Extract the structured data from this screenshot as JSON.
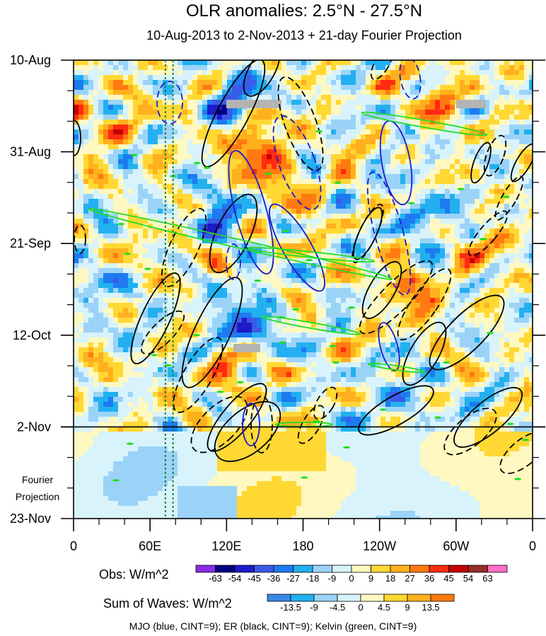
{
  "chart_data": {
    "type": "heatmap",
    "title": "OLR anomalies: 2.5°N - 27.5°N",
    "subtitle": "10-Aug-2013 to 2-Nov-2013 + 21-day Fourier Projection",
    "x_ticks": [
      "0",
      "60E",
      "120E",
      "180",
      "120W",
      "60W",
      "0"
    ],
    "x_values": [
      0,
      60,
      120,
      180,
      240,
      300,
      360
    ],
    "y_ticks": [
      "10-Aug",
      "31-Aug",
      "21-Sep",
      "12-Oct",
      "2-Nov",
      "23-Nov"
    ],
    "y_days": [
      0,
      21,
      42,
      63,
      84,
      105
    ],
    "projection_start_label": "2-Nov",
    "projection_label_line1": "Fourier",
    "projection_label_line2": "Projection",
    "obs_colorbar": {
      "label": "Obs: W/m^2",
      "levels": [
        -63,
        -54,
        -45,
        -36,
        -27,
        -18,
        -9,
        0,
        9,
        18,
        27,
        36,
        45,
        54,
        63
      ],
      "level_labels": [
        "-63",
        "-54",
        "-45",
        "-36",
        "-27",
        "-18",
        "-9",
        "0",
        "9",
        "18",
        "27",
        "36",
        "45",
        "54",
        "63"
      ],
      "colors": [
        "#8a2be2",
        "#00007f",
        "#1c1cc8",
        "#3a5ae8",
        "#1e7af0",
        "#22b0f0",
        "#9bd3f8",
        "#d8f3fb",
        "#fff8c0",
        "#ffd833",
        "#ffb01e",
        "#ff7a10",
        "#ff2b10",
        "#c40000",
        "#9a2a2a",
        "#ff6ec7"
      ]
    },
    "waves_colorbar": {
      "label": "Sum of Waves: W/m^2",
      "levels": [
        -13.5,
        -9,
        -4.5,
        0,
        4.5,
        9,
        13.5
      ],
      "level_labels": [
        "-13.5",
        "-9",
        "-4.5",
        "0",
        "4.5",
        "9",
        "13.5"
      ],
      "colors": [
        "#3a8ae8",
        "#22b0f0",
        "#9bd3f8",
        "#d8f3fb",
        "#fff8c0",
        "#ffd833",
        "#ffb01e",
        "#ff7a10"
      ]
    },
    "contour_note": "MJO (blue, CINT=9); ER (black, CINT=9); Kelvin (green, CINT=9)",
    "reference_longitudes": [
      72,
      78
    ]
  }
}
